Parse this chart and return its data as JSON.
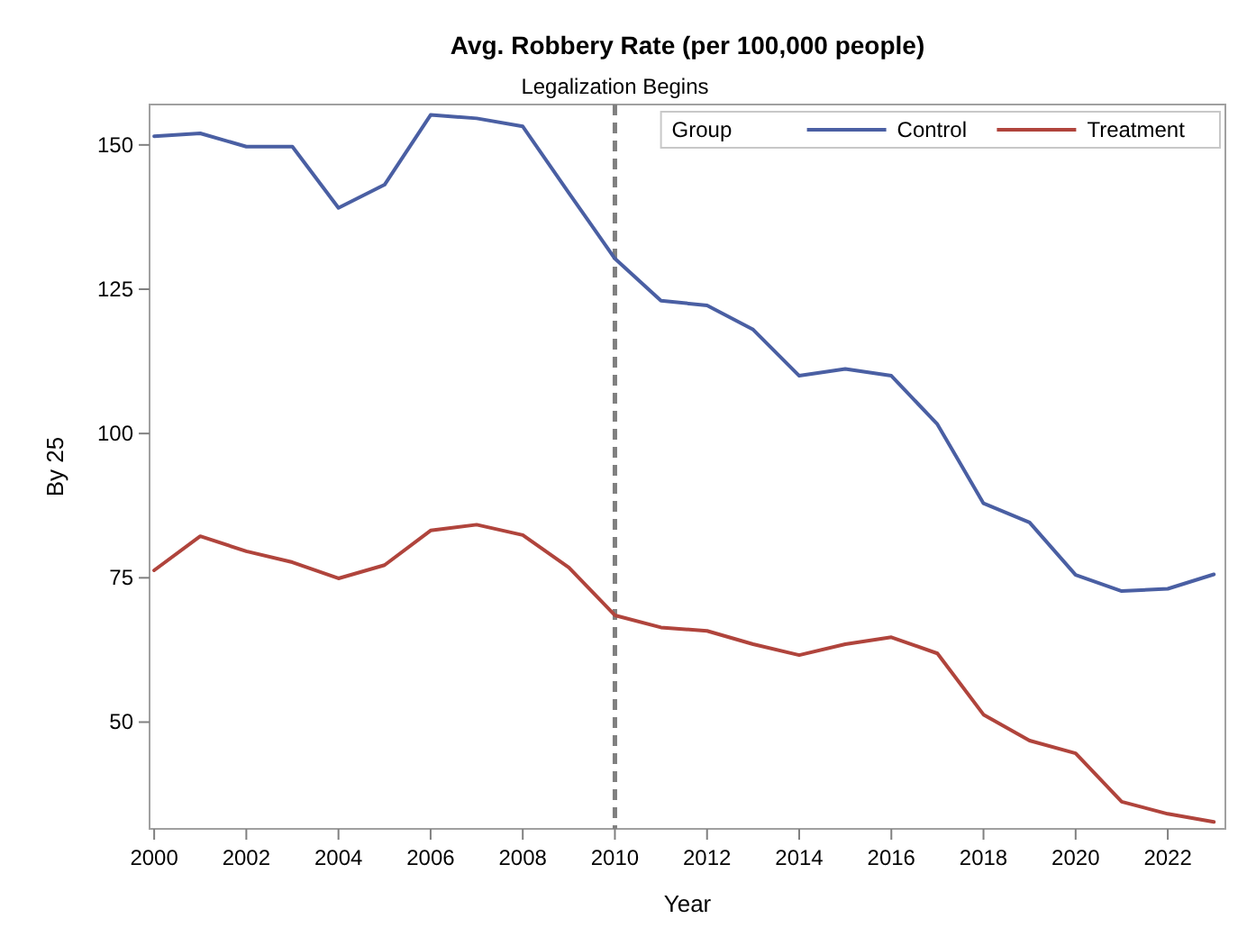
{
  "chart_data": {
    "type": "line",
    "title": "Avg. Robbery Rate (per 100,000 people)",
    "xlabel": "Year",
    "ylabel": "By 25",
    "legend_title": "Group",
    "legend": "top right",
    "grid": false,
    "line_style": "solid",
    "marker": "none",
    "x": [
      2000,
      2001,
      2002,
      2003,
      2004,
      2005,
      2006,
      2007,
      2008,
      2009,
      2010,
      2011,
      2012,
      2013,
      2014,
      2015,
      2016,
      2017,
      2018,
      2019,
      2020,
      2021,
      2022,
      2023
    ],
    "series": [
      {
        "name": "Control",
        "color": "#4a5fa3",
        "values": [
          151.5,
          152,
          149.7,
          149.7,
          139.1,
          143.1,
          155.2,
          154.6,
          153.2,
          141.7,
          130.3,
          123,
          122.2,
          118,
          110,
          111.2,
          110,
          101.6,
          87.9,
          84.6,
          75.5,
          72.7,
          73.1,
          75.6
        ]
      },
      {
        "name": "Treatment",
        "color": "#b0443c",
        "values": [
          76.3,
          82.2,
          79.6,
          77.7,
          74.9,
          77.2,
          83.2,
          84.2,
          82.4,
          76.8,
          68.5,
          66.4,
          65.8,
          63.5,
          61.6,
          63.5,
          64.7,
          61.9,
          51.3,
          46.8,
          44.6,
          36.2,
          34.1,
          32.7
        ]
      }
    ],
    "xlim": [
      1999.9,
      2023.25
    ],
    "xticks": [
      2000,
      2002,
      2004,
      2006,
      2008,
      2010,
      2012,
      2014,
      2016,
      2018,
      2020,
      2022
    ],
    "ylim": [
      31.5,
      157
    ],
    "yticks": [
      50,
      75,
      100,
      125,
      150
    ],
    "ref_lines": [
      {
        "axis": "x",
        "value": 2010,
        "label": "Legalization Begins",
        "color": "#808080",
        "line_style": "dashed"
      }
    ]
  }
}
